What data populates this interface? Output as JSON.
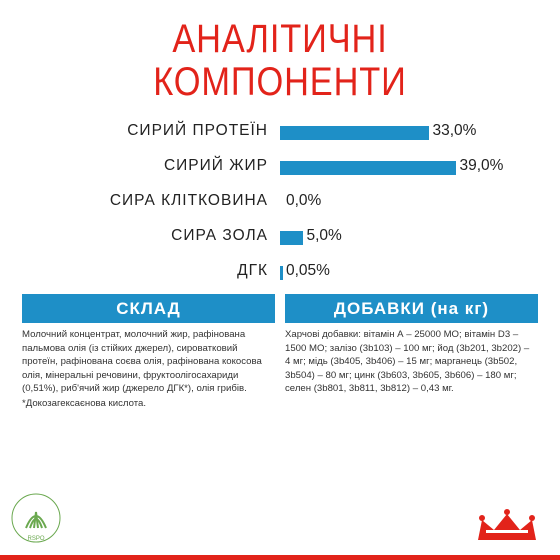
{
  "title": {
    "line1": "АНАЛІТИЧНІ",
    "line2": "КОМПОНЕНТИ"
  },
  "analytics": [
    {
      "label": "СИРИЙ ПРОТЕЇН",
      "value_text": "33,0%",
      "value": 33.0
    },
    {
      "label": "СИРИЙ ЖИР",
      "value_text": "39,0%",
      "value": 39.0
    },
    {
      "label": "СИРА КЛІТКОВИНА",
      "value_text": "0,0%",
      "value": 0.0
    },
    {
      "label": "СИРА ЗОЛА",
      "value_text": "5,0%",
      "value": 5.0
    },
    {
      "label": "ДГК",
      "value_text": "0,05%",
      "value": 0.05
    }
  ],
  "composition": {
    "heading": "СКЛАД",
    "text": "Молочний концентрат, молочний жир, рафінована пальмова олія (із стійких джерел), сироватковий протеїн, рафінована соєва олія, рафінована кокосова олія, мінеральні речовини, фруктоолігосахариди (0,51%), риб'ячий жир (джерело ДГК*), олія грибів.",
    "footnote": "*Докозагексаєнова кислота."
  },
  "additives": {
    "heading": "ДОБАВКИ (на кг)",
    "text": "Харчові добавки: вітамін А – 25000 МО; вітамін D3 – 1500 МО; залізо (3b103) – 100 мг; йод (3b201, 3b202) – 4 мг; мідь (3b405, 3b406) – 15 мг; марганець (3b502, 3b504) – 80 мг; цинк (3b603, 3b605, 3b606) – 180 мг; селен (3b801, 3b811, 3b812) – 0,43 мг."
  },
  "logos": {
    "rspo": "RSPO",
    "rspo_text": "CERTIFIED SUSTAINABLE PALM OIL",
    "brand": "royal-canin-crown-logo"
  },
  "colors": {
    "red": "#e2231a",
    "blue": "#1e8fc7",
    "text": "#222222"
  }
}
